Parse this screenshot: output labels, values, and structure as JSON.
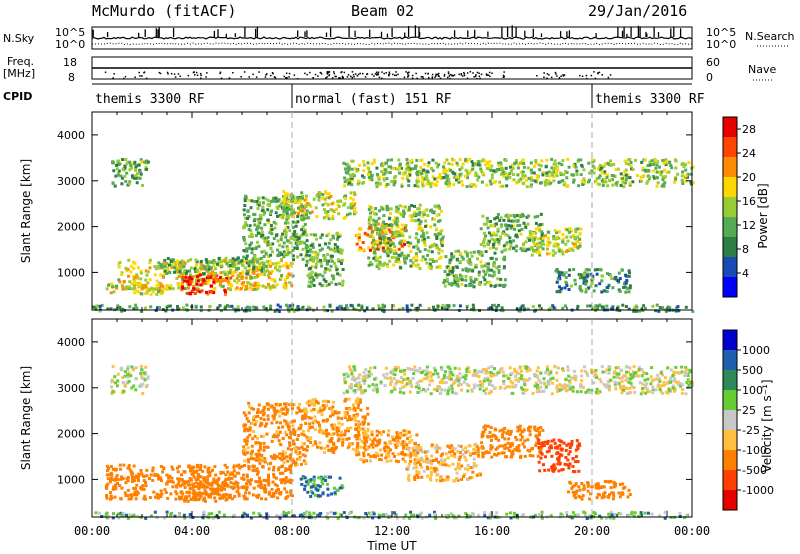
{
  "header": {
    "station": "McMurdo (fitACF)",
    "beam": "Beam 02",
    "date": "29/Jan/2016"
  },
  "side_labels": {
    "nsky": "N.Sky",
    "freq": "Freq.",
    "mhz": "[MHz]",
    "cpid": "CPID",
    "nsearch": "N.Search",
    "nave": "Nave"
  },
  "noise_panel": {
    "left_ticks": [
      "10^5",
      "10^0"
    ],
    "right_ticks": [
      "10^5",
      "10^0"
    ]
  },
  "freq_panel": {
    "left_ticks": [
      "18",
      "8"
    ],
    "right_ticks": [
      "60",
      "0"
    ]
  },
  "cpid_segments": [
    {
      "label": "themis 3300 RF",
      "start": "00:00",
      "end": "08:00"
    },
    {
      "label": "normal (fast) 151 RF",
      "start": "08:00",
      "end": "20:00"
    },
    {
      "label": "themis 3300 RF",
      "start": "20:00",
      "end": "24:00"
    }
  ],
  "colors": {
    "power": [
      "#0000ff",
      "#1a4bb4",
      "#2e7d46",
      "#55aa55",
      "#99cc33",
      "#ffd700",
      "#ff8c00",
      "#ff4500",
      "#e60000"
    ],
    "velocity": [
      "#0000cc",
      "#1f5fb0",
      "#2e8b57",
      "#66cc33",
      "#c8c8c8",
      "#ffc040",
      "#ff8000",
      "#ff4000",
      "#e60000"
    ]
  },
  "chart_data": [
    {
      "type": "heatmap",
      "name": "power",
      "xlabel": "Time UT",
      "ylabel": "Slant Range [km]",
      "x_range": [
        "00:00",
        "24:00"
      ],
      "y_range": [
        180,
        4500
      ],
      "x_ticks": [
        "00:00",
        "04:00",
        "08:00",
        "12:00",
        "16:00",
        "20:00",
        "00:00"
      ],
      "y_ticks": [
        1000,
        2000,
        3000,
        4000
      ],
      "colorbar": {
        "label": "Power [dB]",
        "ticks": [
          4,
          8,
          12,
          16,
          20,
          24,
          28
        ],
        "range": [
          0,
          30
        ]
      },
      "regions": [
        {
          "t0": 0.5,
          "t1": 3.0,
          "r0": 550,
          "r1": 800,
          "value": 16
        },
        {
          "t0": 1.0,
          "t1": 8.0,
          "r0": 650,
          "r1": 1300,
          "value": 18
        },
        {
          "t0": 3.5,
          "t1": 5.5,
          "r0": 550,
          "r1": 1000,
          "value": 26
        },
        {
          "t0": 2.5,
          "t1": 7.0,
          "r0": 1000,
          "r1": 1350,
          "value": 12
        },
        {
          "t0": 0.7,
          "t1": 2.2,
          "r0": 2900,
          "r1": 3500,
          "value": 12
        },
        {
          "t0": 6.0,
          "t1": 8.5,
          "r0": 1300,
          "r1": 2700,
          "value": 12
        },
        {
          "t0": 8.5,
          "t1": 10.0,
          "r0": 700,
          "r1": 1900,
          "value": 12
        },
        {
          "t0": 7.5,
          "t1": 10.5,
          "r0": 2200,
          "r1": 2800,
          "value": 16
        },
        {
          "t0": 10.5,
          "t1": 12.5,
          "r0": 1500,
          "r1": 2100,
          "value": 22
        },
        {
          "t0": 11.0,
          "t1": 14.0,
          "r0": 1100,
          "r1": 2500,
          "value": 14
        },
        {
          "t0": 14.0,
          "t1": 16.5,
          "r0": 700,
          "r1": 1500,
          "value": 12
        },
        {
          "t0": 15.5,
          "t1": 18.0,
          "r0": 1500,
          "r1": 2300,
          "value": 12
        },
        {
          "t0": 17.5,
          "t1": 19.5,
          "r0": 1400,
          "r1": 2000,
          "value": 16
        },
        {
          "t0": 18.5,
          "t1": 21.5,
          "r0": 600,
          "r1": 1100,
          "value": 10
        },
        {
          "t0": 10.0,
          "t1": 24.0,
          "r0": 2900,
          "r1": 3500,
          "value": 14
        },
        {
          "t0": 0.0,
          "t1": 24.0,
          "r0": 180,
          "r1": 320,
          "value": 10
        }
      ]
    },
    {
      "type": "heatmap",
      "name": "velocity",
      "xlabel": "Time UT",
      "ylabel": "Slant Range [km]",
      "x_range": [
        "00:00",
        "24:00"
      ],
      "y_range": [
        180,
        4500
      ],
      "x_ticks": [
        "00:00",
        "04:00",
        "08:00",
        "12:00",
        "16:00",
        "20:00",
        "00:00"
      ],
      "y_ticks": [
        1000,
        2000,
        3000,
        4000
      ],
      "colorbar": {
        "label": "Velocity [m s⁻¹]",
        "ticks": [
          "1000",
          "500",
          "100",
          "25",
          "-25",
          "-100",
          "-500",
          "-1000"
        ]
      },
      "regions": [
        {
          "t0": 0.5,
          "t1": 8.0,
          "r0": 600,
          "r1": 1350,
          "value": -200
        },
        {
          "t0": 3.5,
          "t1": 5.5,
          "r0": 550,
          "r1": 1050,
          "value": -350
        },
        {
          "t0": 0.7,
          "t1": 2.2,
          "r0": 2900,
          "r1": 3500,
          "value": 0
        },
        {
          "t0": 6.0,
          "t1": 8.5,
          "r0": 1300,
          "r1": 2700,
          "value": -150
        },
        {
          "t0": 8.3,
          "t1": 10.0,
          "r0": 650,
          "r1": 1100,
          "value": 120
        },
        {
          "t0": 8.5,
          "t1": 11.0,
          "r0": 1600,
          "r1": 2800,
          "value": -120
        },
        {
          "t0": 10.5,
          "t1": 13.0,
          "r0": 1400,
          "r1": 2100,
          "value": -120
        },
        {
          "t0": 12.5,
          "t1": 15.5,
          "r0": 1000,
          "r1": 1800,
          "value": -80
        },
        {
          "t0": 15.5,
          "t1": 18.0,
          "r0": 1500,
          "r1": 2200,
          "value": -300
        },
        {
          "t0": 17.8,
          "t1": 19.5,
          "r0": 1200,
          "r1": 1900,
          "value": -800
        },
        {
          "t0": 19.0,
          "t1": 21.5,
          "r0": 600,
          "r1": 1000,
          "value": -200
        },
        {
          "t0": 10.0,
          "t1": 24.0,
          "r0": 2900,
          "r1": 3500,
          "value": 0
        },
        {
          "t0": 0.0,
          "t1": 24.0,
          "r0": 180,
          "r1": 320,
          "value": 60
        }
      ]
    }
  ]
}
